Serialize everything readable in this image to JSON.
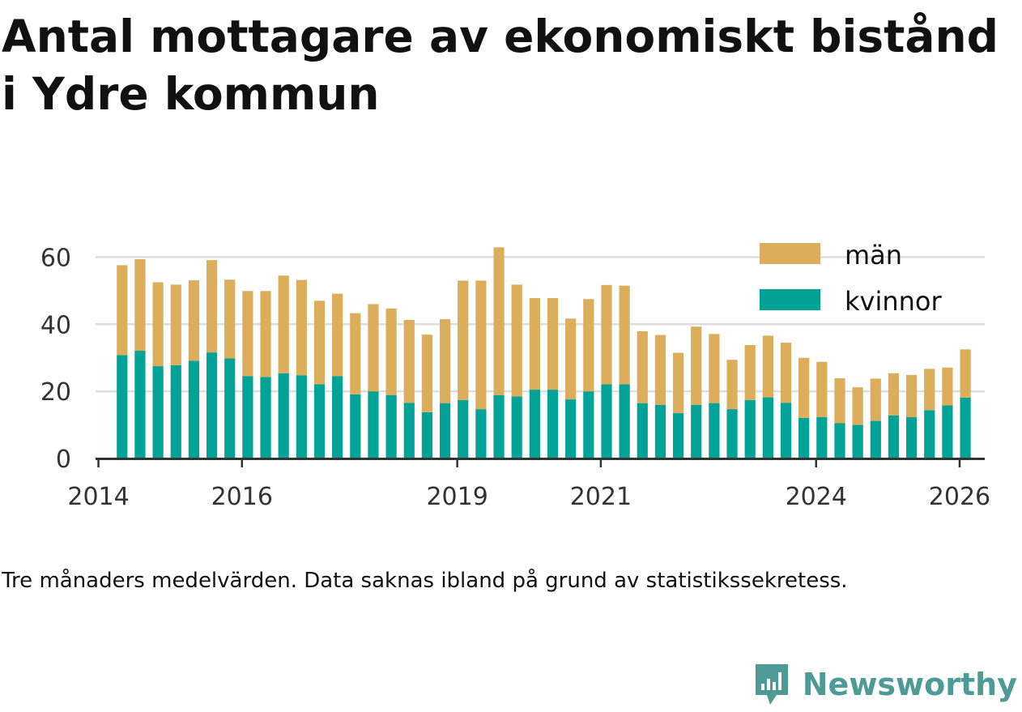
{
  "title": "Antal mottagare av ekonomiskt bistånd i Ydre kommun",
  "caption": "Tre månaders medelvärden. Data saknas ibland på grund av statistikssekretess.",
  "brand": {
    "name": "Newsworthy",
    "icon": "newsworthy-logo-icon",
    "color": "#4d9a97"
  },
  "colors": {
    "man": "#dcad5b",
    "kvinnor": "#00a396",
    "grid": "#dddddd",
    "axis": "#333333"
  },
  "chart_data": {
    "type": "bar",
    "stacked": true,
    "title": "Antal mottagare av ekonomiskt bistånd i Ydre kommun",
    "xlabel": "",
    "ylabel": "",
    "ylim": [
      0,
      63
    ],
    "yticks": [
      0,
      20,
      40,
      60
    ],
    "xlim": [
      2013.96,
      2026.35
    ],
    "xticks": [
      {
        "value": 2014.0,
        "label": "2014"
      },
      {
        "value": 2016.0,
        "label": "2016"
      },
      {
        "value": 2019.0,
        "label": "2019"
      },
      {
        "value": 2021.0,
        "label": "2021"
      },
      {
        "value": 2024.0,
        "label": "2024"
      },
      {
        "value": 2026.0,
        "label": "2026"
      }
    ],
    "legend": {
      "position": "top-right",
      "entries": [
        "män",
        "kvinnor"
      ]
    },
    "x": [
      2014.33,
      2014.58,
      2014.83,
      2015.08,
      2015.33,
      2015.58,
      2015.83,
      2016.08,
      2016.33,
      2016.58,
      2016.83,
      2017.08,
      2017.33,
      2017.58,
      2017.83,
      2018.08,
      2018.33,
      2018.58,
      2018.83,
      2019.08,
      2019.33,
      2019.58,
      2019.83,
      2020.08,
      2020.33,
      2020.58,
      2020.83,
      2021.08,
      2021.33,
      2021.58,
      2021.83,
      2022.08,
      2022.33,
      2022.58,
      2022.83,
      2023.08,
      2023.33,
      2023.58,
      2023.83,
      2024.08,
      2024.33,
      2024.58,
      2024.83,
      2025.08,
      2025.33,
      2025.58,
      2025.83,
      2026.08
    ],
    "series": [
      {
        "name": "kvinnor",
        "values": [
          30.8,
          32.1,
          27.5,
          27.8,
          29.1,
          31.6,
          29.8,
          24.5,
          24.3,
          25.4,
          24.8,
          22.1,
          24.5,
          19.1,
          20.0,
          18.9,
          16.6,
          13.8,
          16.5,
          17.4,
          14.7,
          18.9,
          18.5,
          20.5,
          20.5,
          17.6,
          20.0,
          22.1,
          22.1,
          16.5,
          16.0,
          13.5,
          16.0,
          16.5,
          14.7,
          17.4,
          18.2,
          16.6,
          12.1,
          12.3,
          10.5,
          10.0,
          11.2,
          12.8,
          12.3,
          14.4,
          15.8,
          18.1
        ]
      },
      {
        "name": "män",
        "values": [
          26.8,
          27.3,
          25.0,
          24.0,
          24.0,
          27.5,
          23.5,
          25.4,
          25.6,
          29.1,
          28.4,
          24.9,
          24.6,
          24.2,
          26.0,
          25.8,
          24.7,
          23.1,
          25.0,
          35.6,
          38.3,
          44.0,
          33.3,
          27.3,
          27.3,
          24.1,
          27.5,
          29.6,
          29.4,
          21.4,
          20.8,
          18.0,
          23.3,
          20.6,
          14.7,
          16.4,
          18.4,
          17.9,
          17.9,
          16.5,
          13.4,
          11.2,
          12.6,
          12.6,
          12.6,
          12.3,
          11.3,
          14.4
        ]
      }
    ]
  }
}
